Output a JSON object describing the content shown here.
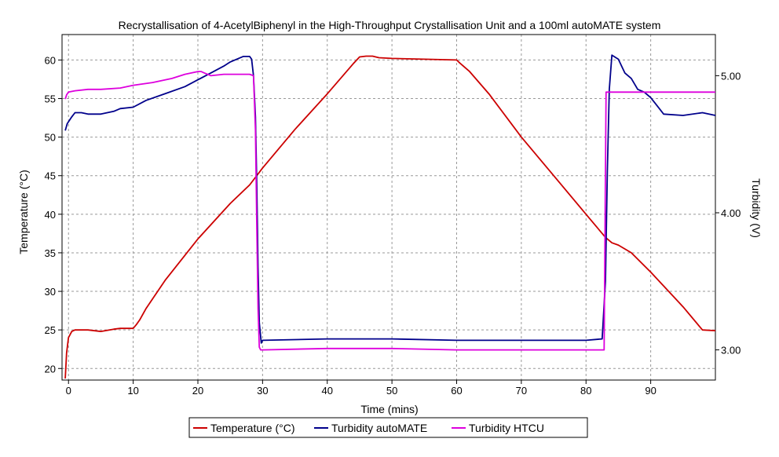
{
  "chart_data": {
    "type": "line",
    "title": "Recrystallisation of 4-AcetylBiphenyl in the High-Throughput Crystallisation Unit and a 100ml autoMATE system",
    "xlabel": "Time (mins)",
    "ylabel": "Temperature (°C)",
    "y2label": "Turbidity (V)",
    "xlim": [
      -1,
      100
    ],
    "ylim": [
      18.5,
      63.3
    ],
    "y2lim": [
      2.78,
      5.3
    ],
    "x_ticks": [
      0,
      10,
      20,
      30,
      40,
      50,
      60,
      70,
      80,
      90
    ],
    "y_ticks": [
      20,
      25,
      30,
      35,
      40,
      45,
      50,
      55,
      60
    ],
    "y2_ticks": [
      3.0,
      4.0,
      5.0
    ],
    "y2_tick_labels": [
      "3.00",
      "4.00",
      "5.00"
    ],
    "grid": true,
    "legend_position": "bottom",
    "series": [
      {
        "name": "Temperature (°C)",
        "axis": "left",
        "color": "#cc0000",
        "x": [
          -0.5,
          -0.3,
          0,
          0.5,
          1,
          2,
          3,
          5,
          7,
          8,
          10,
          10.5,
          11,
          12,
          15,
          20,
          25,
          28,
          30,
          35,
          40,
          44,
          45,
          46,
          47,
          48,
          50,
          55,
          60,
          60.5,
          62,
          65,
          70,
          75,
          80,
          83,
          84,
          85,
          87,
          90,
          95,
          98,
          100
        ],
        "y": [
          18.7,
          22,
          24,
          24.8,
          25,
          25,
          25,
          24.8,
          25.1,
          25.2,
          25.2,
          25.7,
          26.3,
          27.8,
          31.5,
          36.8,
          41.4,
          43.8,
          46.0,
          51.0,
          55.6,
          59.5,
          60.4,
          60.5,
          60.5,
          60.3,
          60.2,
          60.1,
          60.0,
          59.6,
          58.5,
          55.6,
          50.0,
          45.0,
          40.0,
          37.0,
          36.3,
          36.0,
          35.0,
          32.5,
          28.0,
          25.0,
          24.9
        ]
      },
      {
        "name": "Turbidity autoMATE",
        "axis": "right",
        "color": "#00008b",
        "x": [
          -0.5,
          -0.2,
          0.5,
          1,
          2,
          3,
          5,
          7,
          8,
          10,
          12,
          15,
          18,
          20,
          22,
          24,
          25,
          26,
          27,
          28,
          28.3,
          28.6,
          28.9,
          29.1,
          29.3,
          29.5,
          29.8,
          30,
          40,
          50,
          60,
          70,
          80,
          82.5,
          83,
          83.3,
          83.6,
          84,
          85,
          86,
          87,
          88,
          89,
          90,
          91,
          92,
          95,
          98,
          100
        ],
        "y": [
          4.6,
          4.65,
          4.7,
          4.73,
          4.73,
          4.72,
          4.72,
          4.74,
          4.76,
          4.77,
          4.82,
          4.87,
          4.92,
          4.97,
          5.02,
          5.07,
          5.1,
          5.12,
          5.14,
          5.14,
          5.12,
          5.0,
          4.7,
          4.2,
          3.6,
          3.2,
          3.05,
          3.07,
          3.08,
          3.08,
          3.07,
          3.07,
          3.07,
          3.08,
          3.5,
          4.3,
          4.9,
          5.15,
          5.12,
          5.02,
          4.98,
          4.9,
          4.88,
          4.84,
          4.78,
          4.72,
          4.71,
          4.73,
          4.71
        ]
      },
      {
        "name": "Turbidity HTCU",
        "axis": "right",
        "color": "#dd00dd",
        "x": [
          -0.5,
          -0.3,
          0,
          1,
          3,
          5,
          8,
          10,
          13,
          16,
          18,
          20,
          20.5,
          21,
          21.5,
          22,
          24,
          26,
          27,
          28,
          28.6,
          28.9,
          29.1,
          29.3,
          29.5,
          29.7,
          30,
          40,
          50,
          60,
          70,
          80,
          82.5,
          82.8,
          83,
          83.1,
          83.3,
          85,
          90,
          95,
          100
        ],
        "y": [
          4.83,
          4.86,
          4.88,
          4.89,
          4.9,
          4.9,
          4.91,
          4.93,
          4.95,
          4.98,
          5.01,
          5.03,
          5.03,
          5.02,
          5.01,
          5.0,
          5.01,
          5.01,
          5.01,
          5.01,
          5.0,
          4.6,
          3.9,
          3.3,
          3.02,
          3.0,
          3.0,
          3.01,
          3.01,
          3.0,
          3.0,
          3.0,
          3.0,
          3.0,
          4.3,
          4.88,
          4.88,
          4.88,
          4.88,
          4.88,
          4.88
        ]
      }
    ]
  }
}
